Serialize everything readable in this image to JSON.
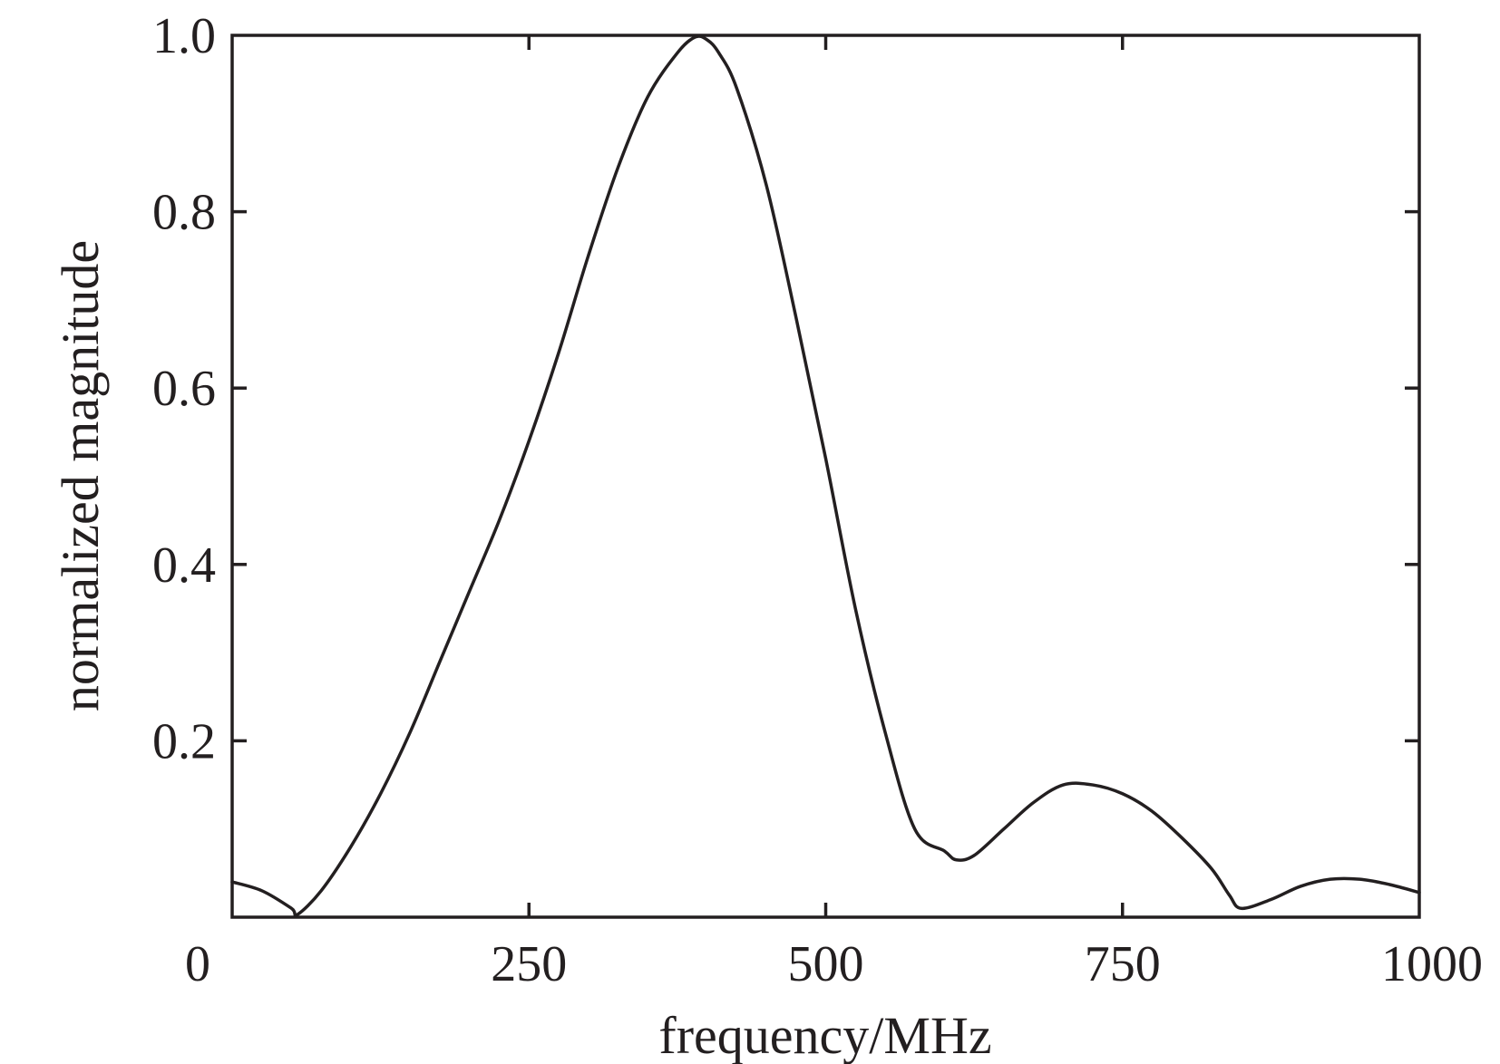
{
  "chart_data": {
    "type": "line",
    "title": "",
    "xlabel": "frequency/MHz",
    "ylabel": "normalized magnitude",
    "xlim": [
      0,
      1000
    ],
    "ylim": [
      0,
      1.0
    ],
    "x_ticks": [
      {
        "value": 0,
        "label": "0"
      },
      {
        "value": 250,
        "label": "250"
      },
      {
        "value": 500,
        "label": "500"
      },
      {
        "value": 750,
        "label": "750"
      },
      {
        "value": 1000,
        "label": "1000"
      }
    ],
    "y_ticks": [
      {
        "value": 0.2,
        "label": "0.2"
      },
      {
        "value": 0.4,
        "label": "0.4"
      },
      {
        "value": 0.6,
        "label": "0.6"
      },
      {
        "value": 0.8,
        "label": "0.8"
      },
      {
        "value": 1.0,
        "label": "1.0"
      }
    ],
    "grid": false,
    "line_color": "#231f20",
    "series": [
      {
        "x": [
          0,
          25,
          50,
          55,
          75,
          100,
          125,
          150,
          175,
          200,
          225,
          250,
          275,
          300,
          325,
          350,
          375,
          390,
          400,
          410,
          425,
          450,
          475,
          500,
          525,
          550,
          575,
          600,
          610,
          625,
          650,
          675,
          700,
          725,
          750,
          775,
          800,
          825,
          840,
          850,
          875,
          900,
          925,
          950,
          975,
          1000
        ],
        "y": [
          0.04,
          0.03,
          0.01,
          0.003,
          0.03,
          0.08,
          0.14,
          0.21,
          0.29,
          0.37,
          0.45,
          0.54,
          0.64,
          0.75,
          0.85,
          0.93,
          0.98,
          0.998,
          0.995,
          0.98,
          0.94,
          0.83,
          0.68,
          0.52,
          0.35,
          0.21,
          0.1,
          0.075,
          0.065,
          0.07,
          0.1,
          0.13,
          0.15,
          0.15,
          0.14,
          0.12,
          0.09,
          0.055,
          0.025,
          0.01,
          0.02,
          0.035,
          0.043,
          0.043,
          0.037,
          0.028
        ]
      }
    ]
  }
}
